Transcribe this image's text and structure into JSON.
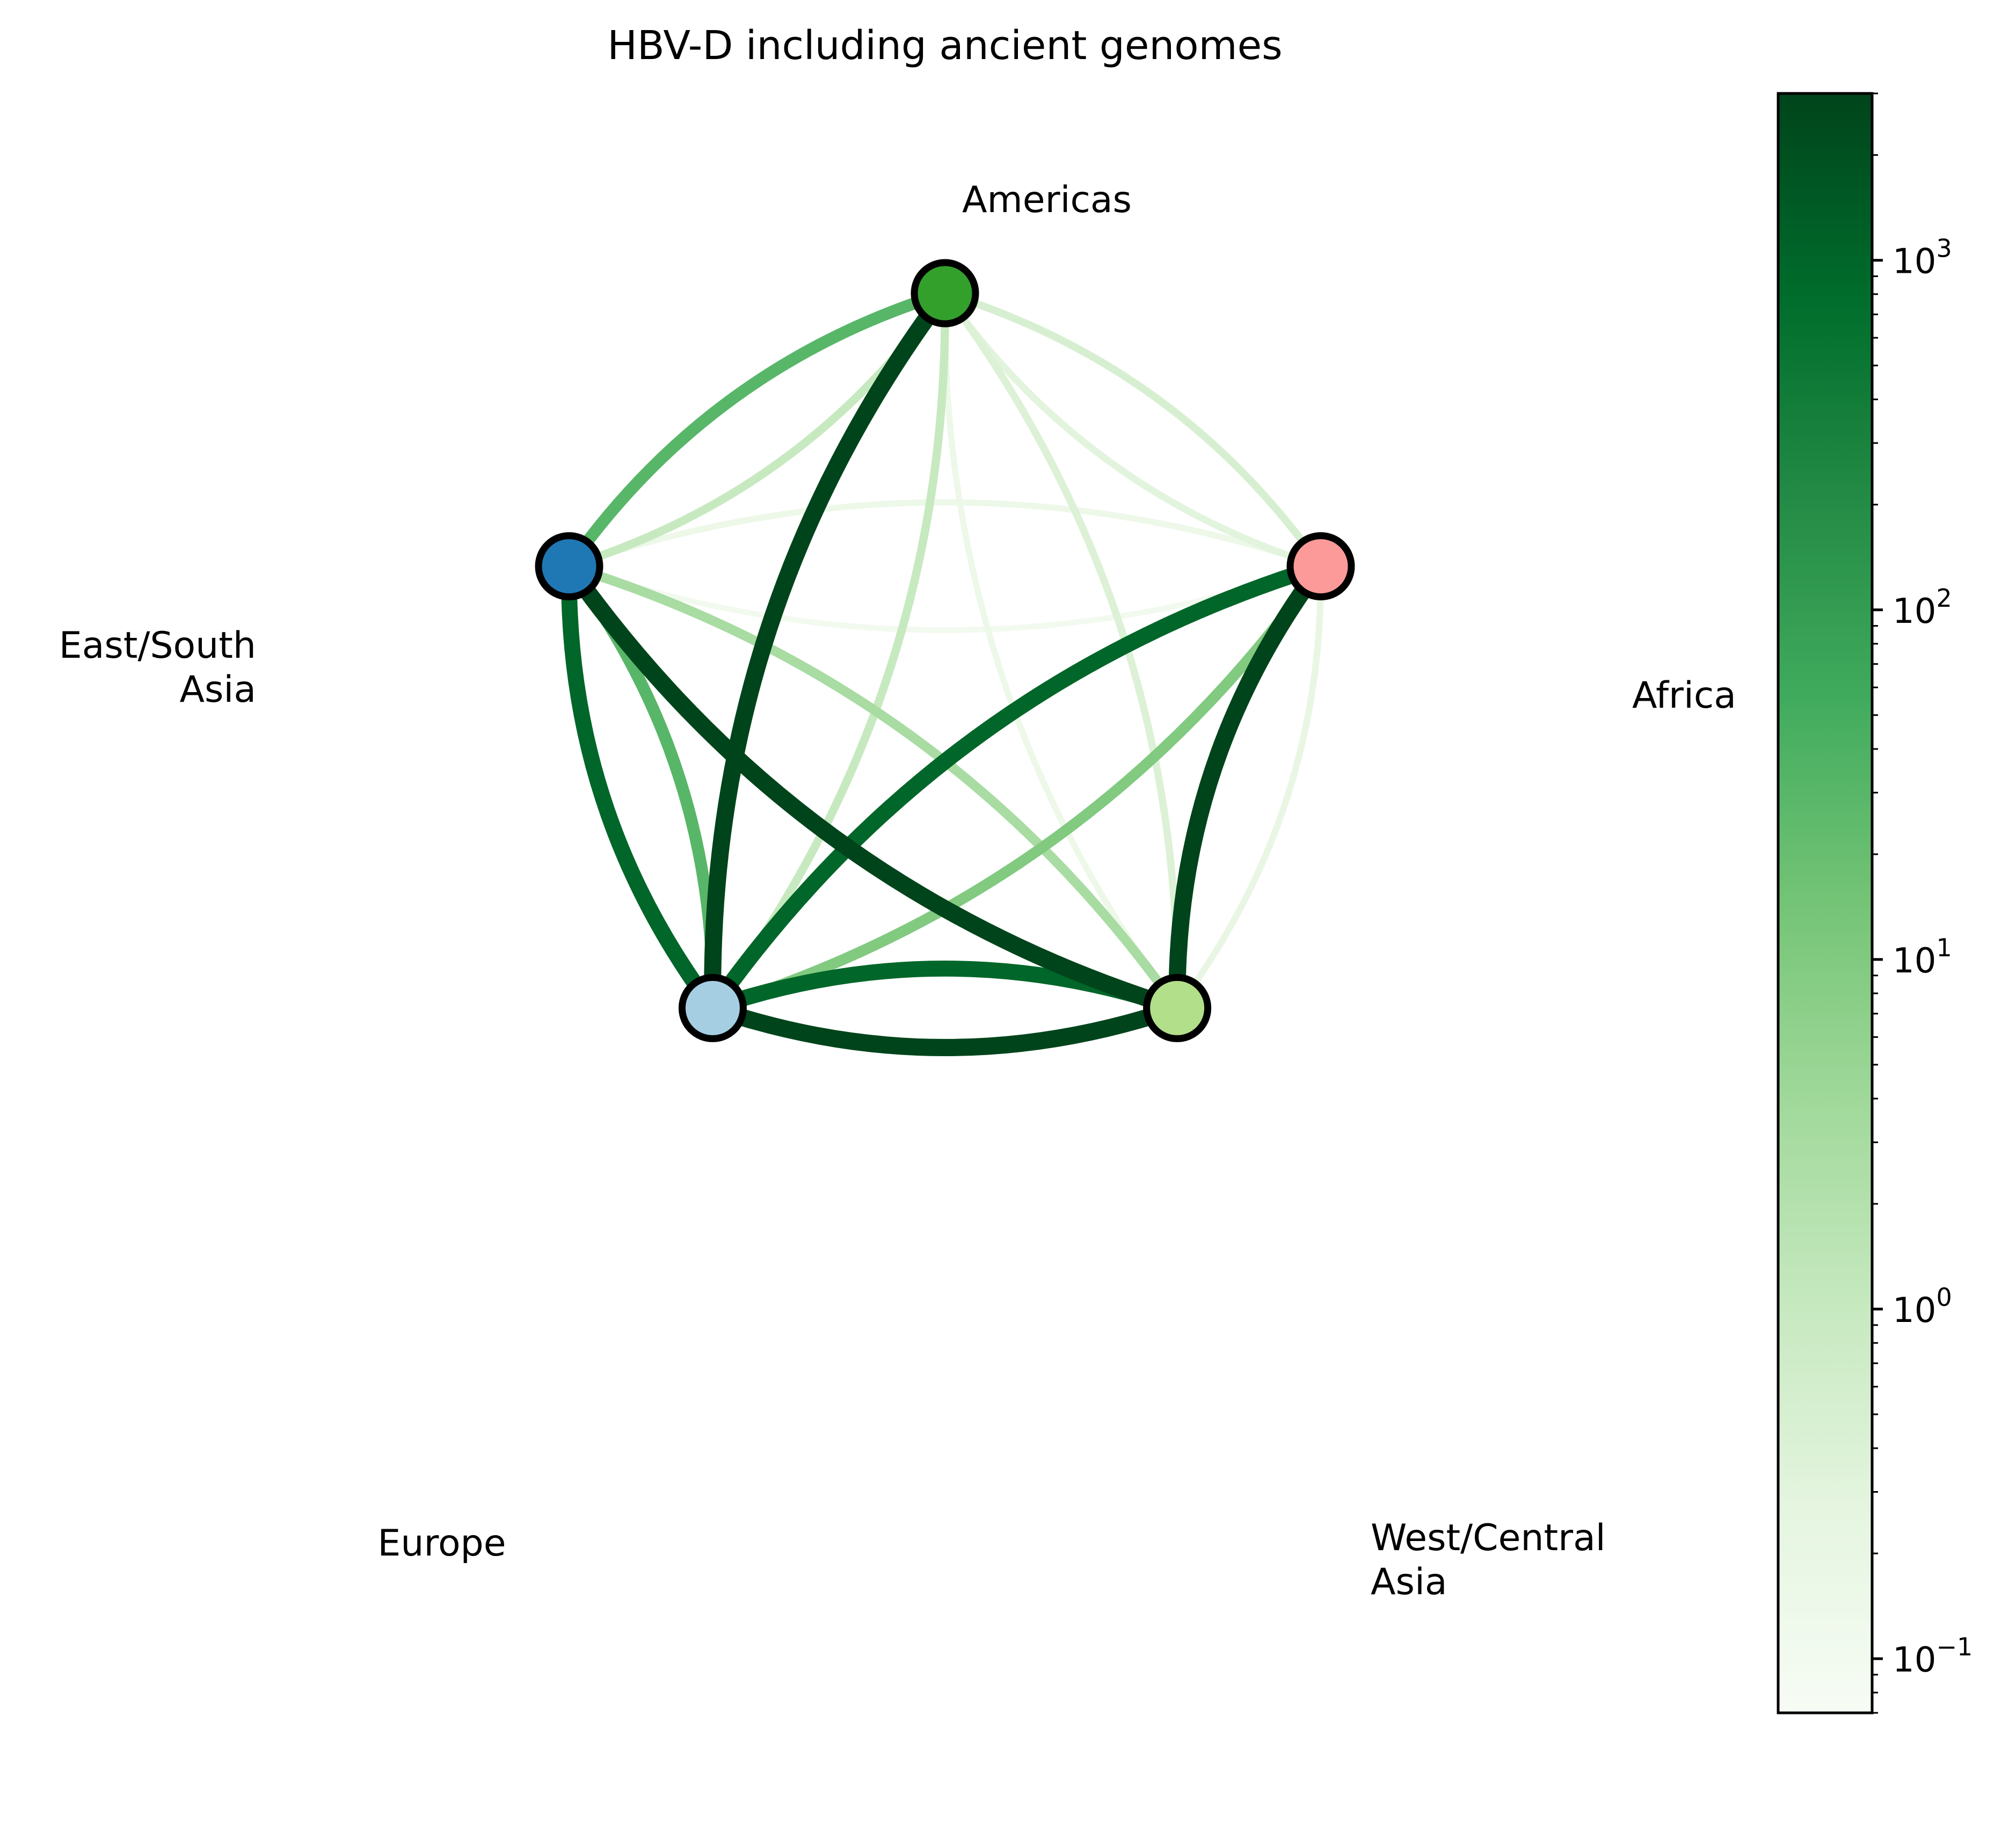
{
  "title": "HBV-D including ancient genomes",
  "nodes": [
    {
      "id": "americas",
      "label_lines": [
        "Americas"
      ],
      "color": "#33a02c"
    },
    {
      "id": "africa",
      "label_lines": [
        "Africa"
      ],
      "color": "#fb9a99"
    },
    {
      "id": "west_central_asia",
      "label_lines": [
        "West/Central",
        "Asia"
      ],
      "color": "#b2df8a"
    },
    {
      "id": "europe",
      "label_lines": [
        "Europe"
      ],
      "color": "#a6cee3"
    },
    {
      "id": "east_south_asia",
      "label_lines": [
        "East/South",
        "Asia"
      ],
      "color": "#1f78b4"
    }
  ],
  "edges": [
    {
      "source": "americas",
      "target": "east_south_asia",
      "rate": 30
    },
    {
      "source": "east_south_asia",
      "target": "americas",
      "rate": 1
    },
    {
      "source": "americas",
      "target": "africa",
      "rate": 0.3
    },
    {
      "source": "africa",
      "target": "americas",
      "rate": 0.5
    },
    {
      "source": "americas",
      "target": "europe",
      "rate": 3000
    },
    {
      "source": "europe",
      "target": "americas",
      "rate": 1
    },
    {
      "source": "americas",
      "target": "west_central_asia",
      "rate": 0.15
    },
    {
      "source": "west_central_asia",
      "target": "americas",
      "rate": 0.4
    },
    {
      "source": "east_south_asia",
      "target": "africa",
      "rate": 0.1
    },
    {
      "source": "africa",
      "target": "east_south_asia",
      "rate": 0.15
    },
    {
      "source": "east_south_asia",
      "target": "europe",
      "rate": 1000
    },
    {
      "source": "europe",
      "target": "east_south_asia",
      "rate": 30
    },
    {
      "source": "east_south_asia",
      "target": "west_central_asia",
      "rate": 3000
    },
    {
      "source": "west_central_asia",
      "target": "east_south_asia",
      "rate": 3
    },
    {
      "source": "africa",
      "target": "europe",
      "rate": 1000
    },
    {
      "source": "europe",
      "target": "africa",
      "rate": 10
    },
    {
      "source": "africa",
      "target": "west_central_asia",
      "rate": 3000
    },
    {
      "source": "west_central_asia",
      "target": "africa",
      "rate": 0.2
    },
    {
      "source": "europe",
      "target": "west_central_asia",
      "rate": 3000
    },
    {
      "source": "west_central_asia",
      "target": "europe",
      "rate": 1000
    }
  ],
  "colorbar": {
    "scale": "log",
    "range": [
      0.07,
      3000
    ],
    "colormap": "Greens",
    "major_ticks": [
      {
        "value": 0.1,
        "base": "10",
        "exp": "−1"
      },
      {
        "value": 1,
        "base": "10",
        "exp": "0"
      },
      {
        "value": 10,
        "base": "10",
        "exp": "1"
      },
      {
        "value": 100,
        "base": "10",
        "exp": "2"
      },
      {
        "value": 1000,
        "base": "10",
        "exp": "3"
      }
    ]
  }
}
